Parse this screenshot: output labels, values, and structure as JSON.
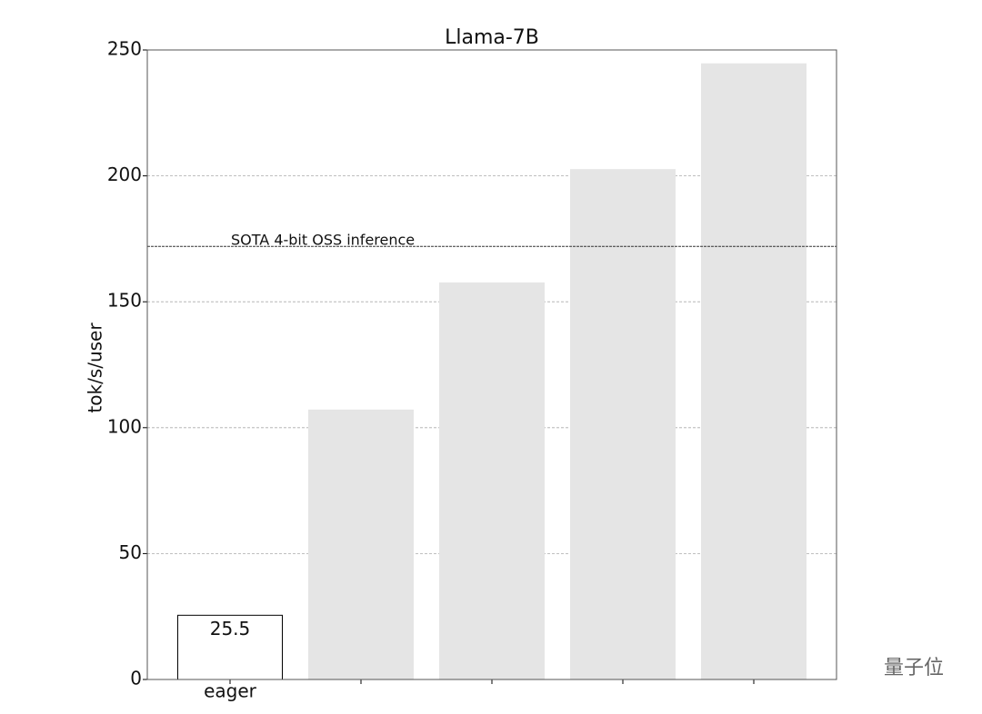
{
  "chart_data": {
    "type": "bar",
    "title": "Llama-7B",
    "ylabel": "tok/s/user",
    "categories": [
      "eager",
      null,
      null,
      null,
      null
    ],
    "values": [
      25.5,
      107,
      157.5,
      202.5,
      244.5
    ],
    "value_labels": [
      "25.5",
      null,
      null,
      null,
      null
    ],
    "colors": [
      "#ffffff",
      "#e5e5e5",
      "#e5e5e5",
      "#e5e5e5",
      "#e5e5e5"
    ],
    "edgecolors": [
      "#000000",
      "#e5e5e5",
      "#e5e5e5",
      "#e5e5e5",
      "#e5e5e5"
    ],
    "ylim": [
      0,
      250
    ],
    "yticks": [
      0,
      50,
      100,
      150,
      200,
      250
    ],
    "grid": true,
    "reference_line": {
      "value": 172,
      "label": "SOTA 4-bit OSS inference"
    },
    "watermark": "量子位"
  }
}
